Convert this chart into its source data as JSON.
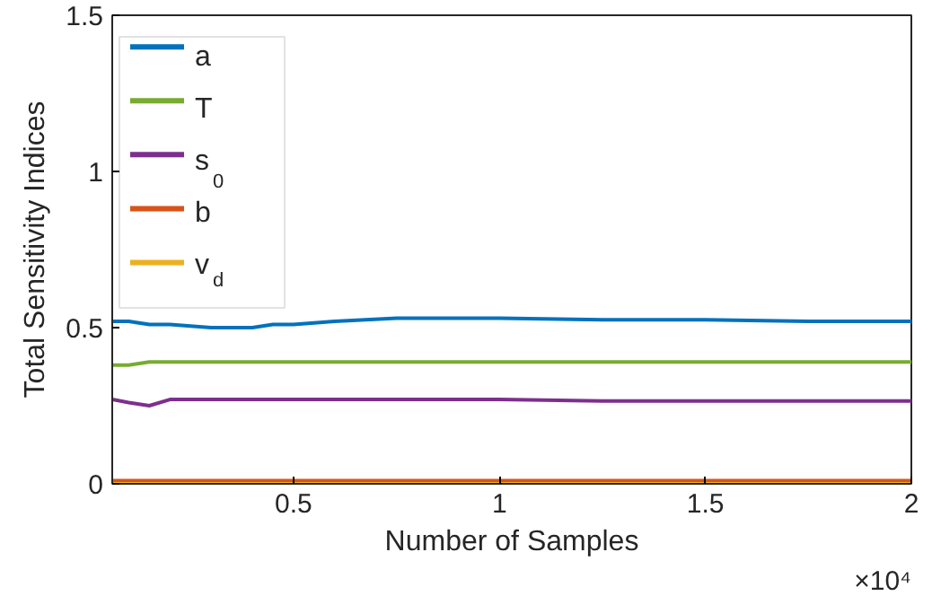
{
  "chart_data": {
    "type": "line",
    "xlabel": "Number of Samples",
    "ylabel": "Total Sensitivity Indices",
    "xlim": [
      0.06,
      2
    ],
    "ylim": [
      0,
      1.5
    ],
    "xticks": [
      0.5,
      1,
      1.5,
      2
    ],
    "yticks": [
      0,
      {
        "value": 0.5,
        "label": "0.5"
      },
      1,
      {
        "value": 1.5,
        "label": "1.5"
      }
    ],
    "annotations": [
      "×10⁴"
    ],
    "grid": false,
    "legend": "top left",
    "marker": "none",
    "line_style": "solid",
    "x": [
      0.06,
      0.1,
      0.15,
      0.2,
      0.3,
      0.4,
      0.45,
      0.5,
      0.6,
      0.75,
      0.85,
      1,
      1.25,
      1.5,
      1.75,
      2
    ],
    "series": [
      {
        "name": "a",
        "color": "#0072bd",
        "values": [
          0.52,
          0.52,
          0.51,
          0.51,
          0.5,
          0.5,
          0.51,
          0.51,
          0.52,
          0.53,
          0.53,
          0.53,
          0.525,
          0.525,
          0.52,
          0.52
        ]
      },
      {
        "name": "T",
        "color": "#77ac30",
        "values": [
          0.38,
          0.38,
          0.39,
          0.39,
          0.39,
          0.39,
          0.39,
          0.39,
          0.39,
          0.39,
          0.39,
          0.39,
          0.39,
          0.39,
          0.39,
          0.39
        ]
      },
      {
        "name": "s$_{0}$",
        "color": "#7e2f8e",
        "values": [
          0.27,
          0.26,
          0.25,
          0.27,
          0.27,
          0.27,
          0.27,
          0.27,
          0.27,
          0.27,
          0.27,
          0.27,
          0.265,
          0.265,
          0.265,
          0.265
        ]
      },
      {
        "name": "b",
        "color": "#d95319",
        "values": [
          0.01,
          0.01,
          0.01,
          0.01,
          0.01,
          0.01,
          0.01,
          0.01,
          0.01,
          0.01,
          0.01,
          0.01,
          0.01,
          0.01,
          0.01,
          0.01
        ]
      },
      {
        "name": "v$_{d}$",
        "color": "#edb120",
        "values": [
          0.0,
          0.0,
          0.0,
          0.0,
          0.0,
          0.0,
          0.0,
          0.0,
          0.0,
          0.0,
          0.0,
          0.0,
          0.0,
          0.0,
          0.0,
          0.0
        ]
      }
    ]
  }
}
